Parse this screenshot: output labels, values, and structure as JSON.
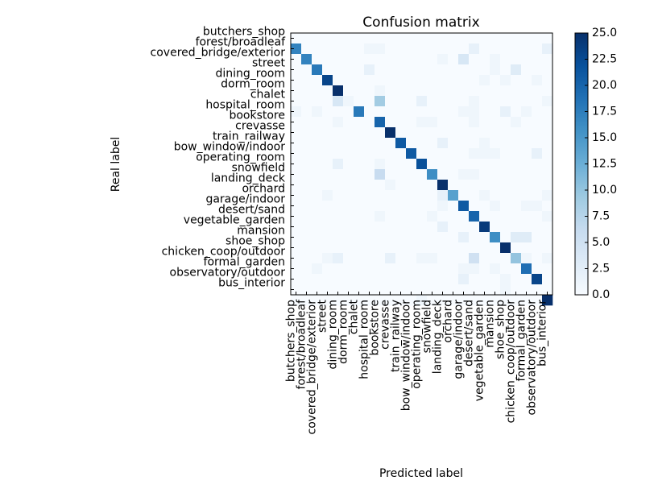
{
  "chart_data": {
    "type": "heatmap",
    "title": "Confusion matrix",
    "xlabel": "Predicted label",
    "ylabel": "Real label",
    "labels": [
      "butchers_shop",
      "forest/broadleaf",
      "covered_bridge/exterior",
      "street",
      "dining_room",
      "dorm_room",
      "chalet",
      "hospital_room",
      "bookstore",
      "crevasse",
      "train_railway",
      "bow_window/indoor",
      "operating_room",
      "snowfield",
      "landing_deck",
      "orchard",
      "garage/indoor",
      "desert/sand",
      "vegetable_garden",
      "mansion",
      "shoe_shop",
      "chicken_coop/outdoor",
      "formal_garden",
      "observatory/outdoor",
      "bus_interior"
    ],
    "value_range": [
      0,
      25
    ],
    "colorbar_ticks": [
      "0.0",
      "2.5",
      "5.0",
      "7.5",
      "10.0",
      "12.5",
      "15.0",
      "17.5",
      "20.0",
      "22.5",
      "25.0"
    ],
    "colormap": "Blues",
    "matrix": [
      [
        0,
        0,
        0,
        0,
        0,
        0,
        0,
        0,
        0,
        0,
        0,
        0,
        0,
        0,
        0,
        0,
        0,
        0,
        0,
        0,
        0,
        0,
        0,
        0,
        0
      ],
      [
        17,
        0,
        0,
        0,
        0,
        0,
        0,
        1,
        1,
        0,
        0,
        0,
        0,
        0,
        0,
        0,
        0,
        2,
        0,
        0,
        0,
        0,
        0,
        0,
        2
      ],
      [
        0,
        17,
        0,
        0,
        0,
        0,
        0,
        0,
        0,
        0,
        0,
        0,
        0,
        0,
        1,
        0,
        4,
        0,
        0,
        1,
        0,
        0,
        0,
        0,
        0
      ],
      [
        0,
        0,
        18,
        0,
        0,
        0,
        0,
        2,
        0,
        0,
        0,
        0,
        0,
        0,
        0,
        0,
        0,
        0,
        0,
        1,
        0,
        3,
        0,
        0,
        0
      ],
      [
        0,
        0,
        0,
        23,
        0,
        0,
        0,
        0,
        0,
        0,
        0,
        0,
        0,
        0,
        0,
        0,
        0,
        0,
        1,
        0,
        1,
        0,
        0,
        1,
        0
      ],
      [
        0,
        0,
        0,
        0,
        25,
        0,
        0,
        0,
        1,
        0,
        0,
        0,
        0,
        0,
        0,
        0,
        0,
        0,
        0,
        0,
        0,
        0,
        0,
        0,
        0
      ],
      [
        0,
        0,
        0,
        0,
        4,
        1,
        0,
        0,
        9,
        0,
        0,
        0,
        2,
        0,
        0,
        0,
        0,
        1,
        0,
        0,
        0,
        0,
        0,
        0,
        1
      ],
      [
        1,
        0,
        1,
        0,
        0,
        0,
        18,
        0,
        0,
        0,
        0,
        0,
        0,
        0,
        0,
        0,
        1,
        1,
        0,
        0,
        2,
        0,
        1,
        0,
        0
      ],
      [
        0,
        0,
        0,
        0,
        1,
        0,
        0,
        0,
        20,
        0,
        0,
        0,
        1,
        1,
        0,
        0,
        0,
        1,
        0,
        0,
        0,
        1,
        0,
        0,
        0
      ],
      [
        0,
        0,
        0,
        0,
        0,
        0,
        0,
        0,
        0,
        25,
        0,
        0,
        0,
        0,
        0,
        0,
        0,
        0,
        0,
        0,
        0,
        0,
        0,
        0,
        0
      ],
      [
        0,
        0,
        0,
        0,
        0,
        0,
        0,
        0,
        0,
        0,
        21,
        0,
        0,
        0,
        2,
        0,
        0,
        0,
        1,
        0,
        0,
        0,
        0,
        0,
        0
      ],
      [
        0,
        0,
        0,
        0,
        0,
        0,
        0,
        0,
        0,
        0,
        0,
        21,
        0,
        0,
        0,
        0,
        0,
        1,
        1,
        1,
        0,
        0,
        0,
        2,
        0
      ],
      [
        0,
        0,
        0,
        0,
        2,
        0,
        0,
        0,
        1,
        0,
        0,
        0,
        22,
        0,
        0,
        0,
        0,
        0,
        0,
        0,
        0,
        0,
        0,
        0,
        0
      ],
      [
        0,
        0,
        0,
        0,
        0,
        0,
        0,
        0,
        6,
        0,
        0,
        0,
        0,
        16,
        0,
        0,
        1,
        1,
        0,
        0,
        0,
        0,
        0,
        0,
        0
      ],
      [
        0,
        0,
        0,
        0,
        0,
        0,
        0,
        0,
        0,
        1,
        0,
        0,
        0,
        0,
        25,
        0,
        0,
        0,
        0,
        0,
        0,
        0,
        0,
        0,
        0
      ],
      [
        0,
        0,
        0,
        1,
        0,
        0,
        0,
        0,
        0,
        0,
        0,
        0,
        0,
        0,
        2,
        14,
        0,
        0,
        1,
        0,
        0,
        0,
        0,
        0,
        1
      ],
      [
        0,
        0,
        0,
        0,
        0,
        0,
        0,
        0,
        0,
        0,
        0,
        0,
        0,
        0,
        1,
        0,
        21,
        0,
        0,
        1,
        0,
        0,
        1,
        1,
        0
      ],
      [
        0,
        0,
        0,
        0,
        0,
        0,
        0,
        0,
        1,
        0,
        0,
        0,
        0,
        1,
        0,
        0,
        0,
        20,
        0,
        0,
        0,
        0,
        0,
        0,
        1
      ],
      [
        0,
        0,
        0,
        0,
        0,
        0,
        0,
        0,
        0,
        0,
        0,
        0,
        0,
        0,
        2,
        0,
        0,
        0,
        24,
        0,
        0,
        0,
        0,
        0,
        0
      ],
      [
        0,
        0,
        0,
        0,
        0,
        0,
        0,
        0,
        0,
        0,
        0,
        0,
        0,
        0,
        0,
        0,
        2,
        0,
        0,
        16,
        0,
        3,
        3,
        0,
        0
      ],
      [
        0,
        0,
        0,
        0,
        0,
        0,
        0,
        0,
        0,
        0,
        0,
        0,
        0,
        0,
        0,
        0,
        0,
        0,
        0,
        0,
        25,
        0,
        0,
        0,
        0
      ],
      [
        0,
        0,
        0,
        1,
        2,
        0,
        0,
        0,
        0,
        2,
        0,
        0,
        1,
        1,
        0,
        0,
        0,
        5,
        0,
        0,
        0,
        10,
        1,
        0,
        1
      ],
      [
        0,
        0,
        1,
        0,
        0,
        0,
        0,
        0,
        0,
        0,
        0,
        0,
        0,
        0,
        0,
        0,
        1,
        1,
        0,
        1,
        0,
        0,
        19,
        0,
        0
      ],
      [
        0,
        0,
        0,
        0,
        0,
        0,
        0,
        0,
        0,
        0,
        0,
        0,
        0,
        0,
        0,
        0,
        2,
        0,
        0,
        0,
        1,
        0,
        0,
        23,
        0
      ],
      [
        0,
        0,
        0,
        0,
        0,
        0,
        0,
        0,
        0,
        0,
        0,
        0,
        0,
        0,
        0,
        0,
        0,
        0,
        0,
        0,
        1,
        0,
        0,
        0,
        0
      ]
    ],
    "last_row_tail": [
      0,
      0,
      0,
      0,
      0,
      0,
      0,
      0,
      0,
      0,
      0,
      0,
      1,
      0,
      0,
      0,
      0,
      0,
      0,
      0,
      0,
      0,
      0,
      0,
      25
    ]
  }
}
